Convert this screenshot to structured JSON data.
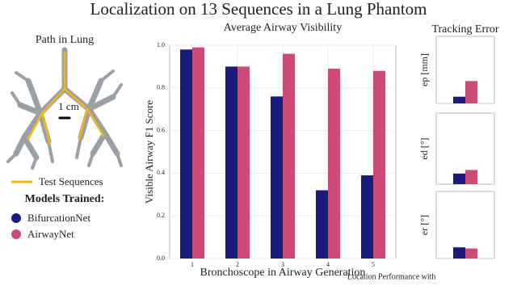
{
  "title": "Localization on 13 Sequences in a Lung Phantom",
  "lung_panel": {
    "title": "Path in Lung",
    "scale_label": "1 cm",
    "path_legend": "Test Sequences",
    "models_title": "Models Trained:"
  },
  "caption": "Location Performance with",
  "chart_data": [
    {
      "type": "bar",
      "title": "Average Airway Visibility",
      "x_label": "Bronchoscope in Airway Generation",
      "y_label": "Visible Airway F1 Score",
      "categories": [
        "1",
        "2",
        "3",
        "4",
        "5"
      ],
      "series": [
        {
          "name": "BifurcationNet",
          "color": "#1b1b7d",
          "values": [
            0.98,
            0.9,
            0.76,
            0.32,
            0.39
          ]
        },
        {
          "name": "AirwayNet",
          "color": "#cc4a78",
          "values": [
            0.99,
            0.9,
            0.96,
            0.89,
            0.88
          ]
        }
      ],
      "ylim": [
        0,
        1.0
      ],
      "yticks": [
        {
          "value": 0,
          "label": "0.0"
        },
        0.2,
        0.4,
        0.6,
        0.8,
        {
          "value": 1.0,
          "label": "1.0"
        }
      ],
      "grid": true
    },
    {
      "type": "bar",
      "title": "Tracking Error",
      "y_label": "ep [mm]",
      "series": [
        {
          "name": "BifurcationNet",
          "color": "#1b1b7d",
          "values": [
            3
          ]
        },
        {
          "name": "AirwayNet",
          "color": "#cc4a78",
          "values": [
            10
          ]
        }
      ],
      "ylim": [
        0,
        30
      ]
    },
    {
      "type": "bar",
      "y_label": "ed [°]",
      "series": [
        {
          "name": "BifurcationNet",
          "color": "#1b1b7d",
          "values": [
            6
          ]
        },
        {
          "name": "AirwayNet",
          "color": "#cc4a78",
          "values": [
            8
          ]
        }
      ],
      "ylim": [
        0,
        40
      ]
    },
    {
      "type": "bar",
      "y_label": "er [°]",
      "series": [
        {
          "name": "BifurcationNet",
          "color": "#1b1b7d",
          "values": [
            10
          ]
        },
        {
          "name": "AirwayNet",
          "color": "#cc4a78",
          "values": [
            9
          ]
        }
      ],
      "ylim": [
        0,
        60
      ]
    }
  ]
}
